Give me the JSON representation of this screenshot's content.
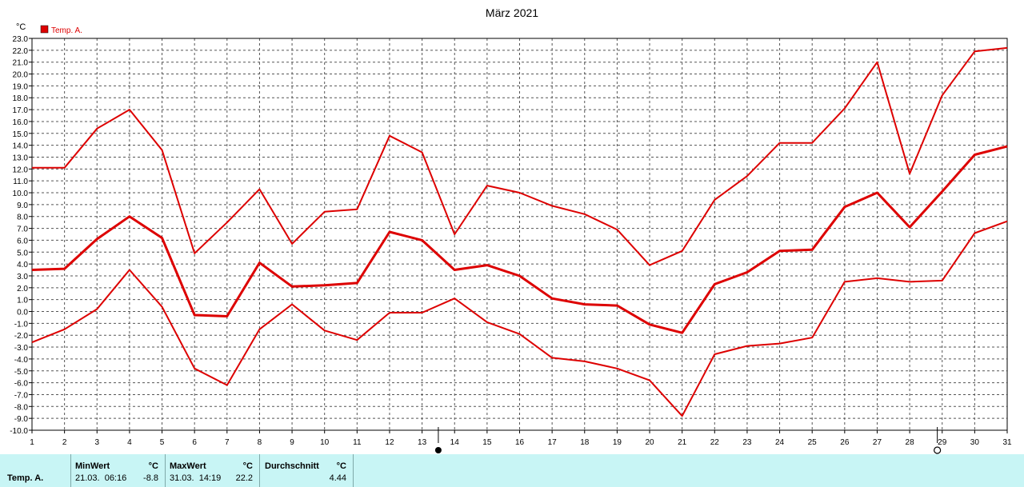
{
  "chart_data": {
    "type": "line",
    "title": "März 2021",
    "unit": "°C",
    "legend": {
      "label": "Temp. A.",
      "color": "#dd0000",
      "placement": "top-left"
    },
    "x": [
      1,
      2,
      3,
      4,
      5,
      6,
      7,
      8,
      9,
      10,
      11,
      12,
      13,
      14,
      15,
      16,
      17,
      18,
      19,
      20,
      21,
      22,
      23,
      24,
      25,
      26,
      27,
      28,
      29,
      30,
      31
    ],
    "ylim": [
      -10.0,
      23.0
    ],
    "ytick_step": 1.0,
    "grid": true,
    "series": [
      {
        "line": "thin",
        "values": [
          12.1,
          12.1,
          15.4,
          17.0,
          13.6,
          4.9,
          7.5,
          10.3,
          5.7,
          8.4,
          8.6,
          14.8,
          13.4,
          6.5,
          10.6,
          10.0,
          8.9,
          8.2,
          6.9,
          3.9,
          5.1,
          9.4,
          11.4,
          14.2,
          14.2,
          17.1,
          21.0,
          11.6,
          18.2,
          21.9,
          22.2
        ]
      },
      {
        "line": "thick",
        "values": [
          3.5,
          3.6,
          6.1,
          8.0,
          6.2,
          -0.3,
          -0.4,
          4.1,
          2.1,
          2.2,
          2.4,
          6.7,
          6.0,
          3.5,
          3.9,
          3.0,
          1.1,
          0.6,
          0.5,
          -1.1,
          -1.8,
          2.3,
          3.3,
          5.1,
          5.2,
          8.8,
          10.0,
          7.1,
          10.1,
          13.2,
          13.9
        ]
      },
      {
        "line": "thin",
        "values": [
          -2.6,
          -1.5,
          0.2,
          3.5,
          0.4,
          -4.8,
          -6.2,
          -1.5,
          0.6,
          -1.6,
          -2.4,
          -0.1,
          -0.1,
          1.1,
          -0.9,
          -1.9,
          -3.9,
          -4.2,
          -4.8,
          -5.8,
          -8.8,
          -3.6,
          -2.9,
          -2.7,
          -2.2,
          2.5,
          2.8,
          2.5,
          2.6,
          6.6,
          7.6
        ]
      }
    ],
    "markers": [
      {
        "day": 13.5,
        "symbol": "filled-circle"
      },
      {
        "day": 28.85,
        "symbol": "open-circle"
      }
    ]
  },
  "stats": {
    "row_label": "Temp. A.",
    "min_header": "MinWert",
    "min_unit": "°C",
    "min_time": "21.03.  06:16",
    "min_value": "-8.8",
    "max_header": "MaxWert",
    "max_unit": "°C",
    "max_time": "31.03.  14:19",
    "max_value": "22.2",
    "avg_header": "Durchschnitt",
    "avg_unit": "°C",
    "avg_value": "4.44"
  }
}
